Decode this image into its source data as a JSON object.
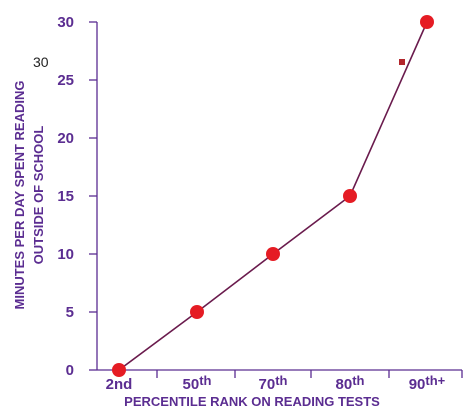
{
  "chart_data": {
    "type": "line",
    "categories": [
      "2nd",
      "50th",
      "70th",
      "80th",
      "90th+"
    ],
    "x_tick_labels": [
      {
        "base": "2nd",
        "sup": ""
      },
      {
        "base": "50",
        "sup": "th"
      },
      {
        "base": "70",
        "sup": "th"
      },
      {
        "base": "80",
        "sup": "th"
      },
      {
        "base": "90",
        "sup": "th+"
      }
    ],
    "series": [
      {
        "values": [
          0,
          5,
          10,
          15,
          30
        ]
      }
    ],
    "xlabel": "PERCENTILE RANK ON READING TESTS",
    "ylabel_lines": [
      "MINUTES PER DAY SPENT READING",
      "OUTSIDE OF SCHOOL"
    ],
    "yticks": [
      0,
      5,
      10,
      15,
      20,
      25,
      30
    ],
    "ylim": [
      0,
      30
    ],
    "grid": false,
    "side_annotation": "30",
    "colors": {
      "axis": "#5b2d91",
      "line": "#6a1b4d",
      "marker": "#e51c24",
      "small_marker": "#b3262c"
    }
  }
}
